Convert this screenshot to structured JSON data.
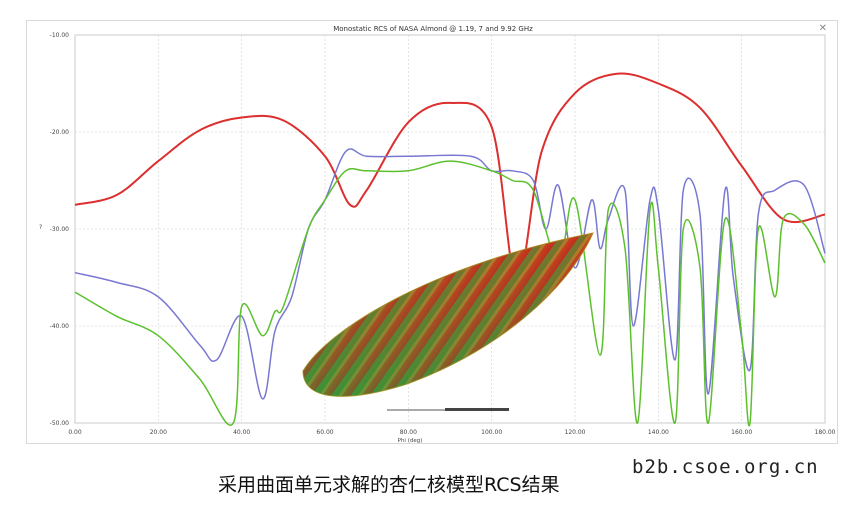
{
  "chart_data": {
    "type": "line",
    "title": "Monostatic RCS of NASA Almond @ 1.19, 7 and 9.92 GHz",
    "ylabel": "?",
    "xlabel": "Phi (deg)",
    "xlim": [
      0,
      180
    ],
    "ylim": [
      -50,
      -10
    ],
    "y_ticks": [
      "-10.00",
      "-20.00",
      "-30.00",
      "-40.00",
      "-50.00"
    ],
    "y_tick_values": [
      -10,
      -20,
      -30,
      -40,
      -50
    ],
    "x_ticks": [
      "0.00",
      "20.00",
      "40.00",
      "60.00",
      "80.00",
      "100.00",
      "120.00",
      "140.00",
      "160.00",
      "180.00"
    ],
    "x_tick_values": [
      0,
      20,
      40,
      60,
      80,
      100,
      120,
      140,
      160,
      180
    ],
    "grid": true,
    "series": [
      {
        "color": "#dc2f2f",
        "x": [
          0,
          10,
          20,
          30,
          40,
          50,
          60,
          66,
          70,
          80,
          90,
          100,
          106,
          112,
          120,
          130,
          140,
          150,
          160,
          170,
          180
        ],
        "y": [
          -27.5,
          -26.5,
          -23,
          -19.8,
          -18.5,
          -18.8,
          -22.5,
          -27.5,
          -26,
          -19,
          -17,
          -19.5,
          -35.5,
          -22,
          -16,
          -14,
          -15,
          -17.5,
          -23.5,
          -29,
          -28.5
        ]
      },
      {
        "color": "#7878d2",
        "x": [
          0,
          10,
          20,
          30,
          34,
          40,
          45,
          48,
          52,
          56,
          60,
          65,
          70,
          80,
          95,
          100,
          105,
          110,
          113,
          116,
          120,
          124,
          126,
          128,
          132,
          134,
          138,
          140,
          144,
          146,
          150,
          152,
          156,
          158,
          162,
          164,
          168,
          175,
          180
        ],
        "y": [
          -34.5,
          -35.5,
          -37,
          -42,
          -43.5,
          -39,
          -47.5,
          -40.5,
          -37,
          -30,
          -27,
          -22,
          -22.5,
          -22.5,
          -22.5,
          -24,
          -24,
          -25,
          -30,
          -25.5,
          -34,
          -27,
          -32,
          -29,
          -26,
          -40,
          -27,
          -28,
          -43.5,
          -26,
          -28.5,
          -47,
          -26,
          -35,
          -44.5,
          -28.5,
          -26,
          -25.5,
          -32.5
        ]
      },
      {
        "color": "#5cc02e",
        "x": [
          0,
          10,
          20,
          30,
          38,
          40,
          45,
          48,
          50,
          56,
          60,
          65,
          70,
          80,
          90,
          100,
          105,
          110,
          116,
          120,
          126,
          128,
          132,
          135,
          138,
          140,
          144,
          146,
          150,
          152,
          156,
          160,
          162,
          164,
          168,
          170,
          175,
          180
        ],
        "y": [
          -36.5,
          -39,
          -41,
          -45.5,
          -50,
          -38,
          -41,
          -38.5,
          -38,
          -30,
          -27,
          -24,
          -24,
          -24,
          -23,
          -24,
          -25,
          -26,
          -33.5,
          -27,
          -43,
          -28,
          -32,
          -50,
          -28,
          -34,
          -50,
          -30,
          -34,
          -50,
          -29,
          -41,
          -50,
          -30,
          -37,
          -29,
          -29.5,
          -33.5
        ]
      }
    ]
  },
  "caption": "采用曲面单元求解的杏仁核模型RCS结果",
  "watermark": "b2b.csoe.org.cn",
  "window": {
    "close_glyph": "✕"
  }
}
